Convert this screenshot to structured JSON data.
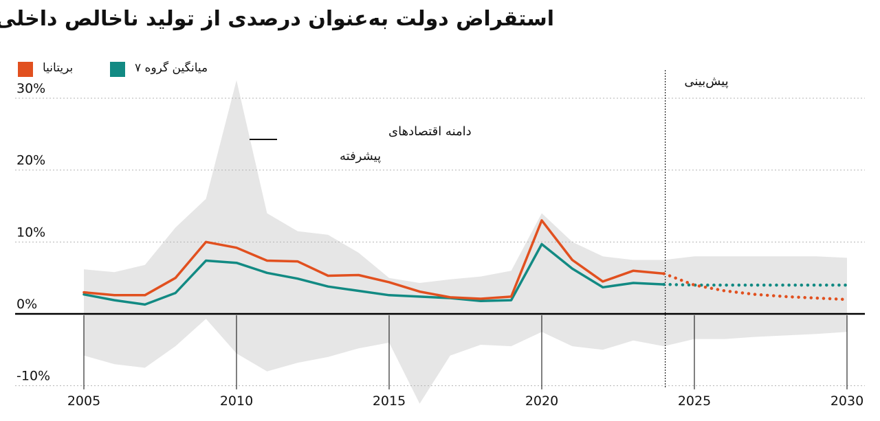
{
  "chart_data": {
    "type": "line",
    "title": "استقراض دولت به‌عنوان درصدی از تولید ناخالص داخلی",
    "xlabel": "",
    "ylabel": "",
    "xlim": [
      2005,
      2030
    ],
    "ylim": [
      -10,
      30
    ],
    "xticks": [
      "2005",
      "2010",
      "2015",
      "2020",
      "2025",
      "2030"
    ],
    "yticks": [
      "30%",
      "20%",
      "10%",
      "0%",
      "-10%"
    ],
    "grid": true,
    "legend_position": "top-left",
    "forecast_start": 2024,
    "forecast_label": "پیش‌بینی",
    "band_label": "دامنه اقتصادهای پیشرفته",
    "band": {
      "x": [
        2005,
        2006,
        2007,
        2008,
        2009,
        2010,
        2011,
        2012,
        2013,
        2014,
        2015,
        2016,
        2017,
        2018,
        2019,
        2020,
        2021,
        2022,
        2023,
        2024,
        2025,
        2026,
        2027,
        2028,
        2029,
        2030
      ],
      "upper": [
        6.2,
        5.8,
        6.8,
        12.0,
        16.0,
        32.5,
        14.0,
        11.5,
        11.0,
        8.5,
        5.0,
        4.3,
        4.8,
        5.2,
        6.0,
        14.0,
        10.0,
        8.0,
        7.5,
        7.5,
        8.0,
        8.0,
        8.0,
        8.0,
        8.0,
        7.8
      ],
      "lower": [
        -5.8,
        -7.0,
        -7.5,
        -4.5,
        -0.7,
        -5.5,
        -8.0,
        -6.8,
        -6.0,
        -4.8,
        -4.0,
        -12.5,
        -5.8,
        -4.3,
        -4.5,
        -2.5,
        -4.5,
        -5.0,
        -3.7,
        -4.5,
        -3.5,
        -3.5,
        -3.2,
        -3.0,
        -2.8,
        -2.5
      ]
    },
    "series": [
      {
        "name": "بریتانیا",
        "color": "#e1501f",
        "x": [
          2005,
          2006,
          2007,
          2008,
          2009,
          2010,
          2011,
          2012,
          2013,
          2014,
          2015,
          2016,
          2017,
          2018,
          2019,
          2020,
          2021,
          2022,
          2023,
          2024
        ],
        "values": [
          3.0,
          2.6,
          2.6,
          5.0,
          10.0,
          9.2,
          7.4,
          7.3,
          5.3,
          5.4,
          4.4,
          3.1,
          2.3,
          2.1,
          2.4,
          13.0,
          7.5,
          4.5,
          6.0,
          5.6
        ],
        "forecast_x": [
          2024,
          2025,
          2026,
          2027,
          2028,
          2029,
          2030
        ],
        "forecast_values": [
          5.6,
          4.0,
          3.2,
          2.7,
          2.4,
          2.2,
          2.0
        ]
      },
      {
        "name": "میانگین گروه ۷",
        "color": "#128a83",
        "x": [
          2005,
          2006,
          2007,
          2008,
          2009,
          2010,
          2011,
          2012,
          2013,
          2014,
          2015,
          2016,
          2017,
          2018,
          2019,
          2020,
          2021,
          2022,
          2023,
          2024
        ],
        "values": [
          2.7,
          1.9,
          1.3,
          2.9,
          7.4,
          7.1,
          5.7,
          4.9,
          3.8,
          3.2,
          2.6,
          2.4,
          2.2,
          1.8,
          1.9,
          9.7,
          6.3,
          3.7,
          4.3,
          4.1
        ],
        "forecast_x": [
          2024,
          2025,
          2026,
          2027,
          2028,
          2029,
          2030
        ],
        "forecast_values": [
          4.1,
          4.0,
          4.0,
          4.0,
          4.0,
          4.0,
          4.0
        ]
      }
    ]
  },
  "colors": {
    "band": "#e6e6e6",
    "grid": "#b3b3b3",
    "zero_line": "#000000"
  }
}
